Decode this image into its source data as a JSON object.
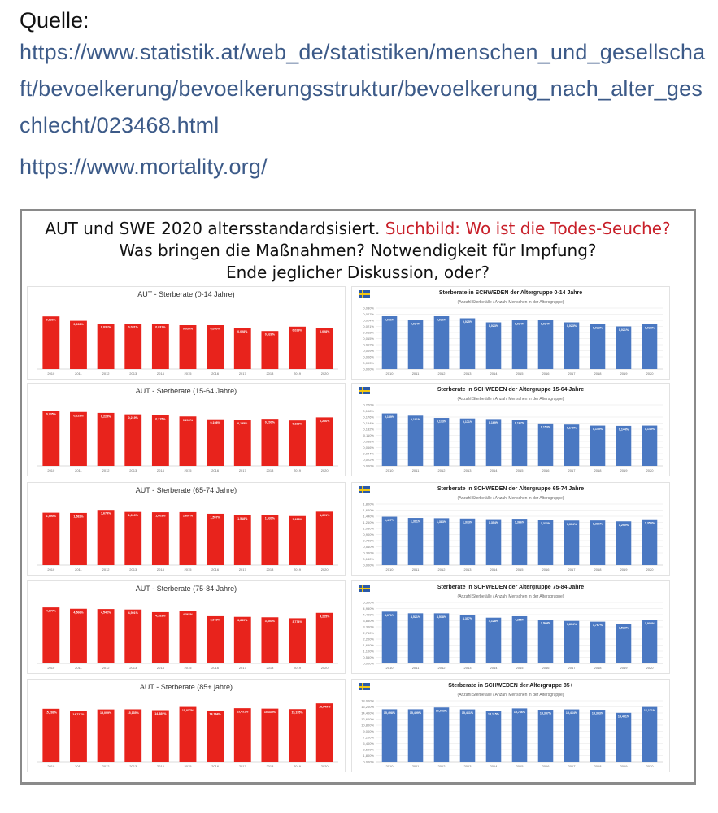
{
  "source": {
    "label": "Quelle:",
    "link1": "https://www.statistik.at/web_de/statistiken/menschen_und_gesellschaft/bevoelkerung/bevoelkerungsstruktur/bevoelkerung_nach_alter_geschlecht/023468.html",
    "link2": "https://www.mortality.org/"
  },
  "heading": {
    "line1_black": "AUT und SWE 2020 altersstandardsisiert.",
    "line1_red": "Suchbild: Wo ist die Todes-Seuche?",
    "line2": "Was bringen die Maßnahmen? Notwendigkeit für Impfung?",
    "line3": "Ende jeglicher Diskussion, oder?"
  },
  "colors": {
    "aut_bar": "#e8231c",
    "swe_bar": "#4a78c2",
    "swe_flag_blue": "#2b5aa8",
    "swe_flag_yellow": "#f3c712",
    "heading_red": "#c8202a"
  },
  "icons": {
    "swe_flag": "sweden-flag-icon"
  },
  "swe_subtitle": "(Anzahl Sterbefälle / Anzahl Menschen in der Altersgruppe)",
  "chart_data": [
    {
      "type": "bar",
      "title": "AUT - Sterberate (0-14 Jahre)",
      "categories": [
        "2010",
        "2011",
        "2012",
        "2013",
        "2014",
        "2015",
        "2016",
        "2017",
        "2018",
        "2019",
        "2020"
      ],
      "values": [
        0.036,
        0.033,
        0.031,
        0.031,
        0.031,
        0.03,
        0.03,
        0.028,
        0.026,
        0.029,
        0.028
      ],
      "labels": [
        "0,036%",
        "0,033%",
        "0,031%",
        "0,031%",
        "0,031%",
        "0,030%",
        "0,030%",
        "0,028%",
        "0,026%",
        "0,029%",
        "0,028%"
      ],
      "ylim": [
        0,
        0.045
      ]
    },
    {
      "type": "bar",
      "title": "Sterberate in SCHWEDEN der Altergruppe 0-14 Jahre",
      "categories": [
        "2010",
        "2011",
        "2012",
        "2013",
        "2014",
        "2015",
        "2016",
        "2017",
        "2018",
        "2019",
        "2020"
      ],
      "values": [
        0.026,
        0.024,
        0.026,
        0.025,
        0.023,
        0.024,
        0.024,
        0.023,
        0.022,
        0.021,
        0.022
      ],
      "labels": [
        "0,026%",
        "0,024%",
        "0,026%",
        "0,025%",
        "0,023%",
        "0,024%",
        "0,024%",
        "0,023%",
        "0,022%",
        "0,021%",
        "0,022%"
      ],
      "ylim": [
        0,
        0.03
      ]
    },
    {
      "type": "bar",
      "title": "AUT - Sterberate (15-64 Jahre)",
      "categories": [
        "2010",
        "2011",
        "2012",
        "2013",
        "2014",
        "2015",
        "2016",
        "2017",
        "2018",
        "2019",
        "2020"
      ],
      "values": [
        0.235,
        0.229,
        0.225,
        0.219,
        0.215,
        0.21,
        0.198,
        0.195,
        0.2,
        0.193,
        0.206
      ],
      "labels": [
        "0,235%",
        "0,229%",
        "0,225%",
        "0,219%",
        "0,215%",
        "0,210%",
        "0,198%",
        "0,195%",
        "0,200%",
        "0,193%",
        "0,206%"
      ],
      "ylim": [
        0,
        0.28
      ]
    },
    {
      "type": "bar",
      "title": "Sterberate in SCHWEDEN der Altergruppe 15-64 Jahre",
      "categories": [
        "2010",
        "2011",
        "2012",
        "2013",
        "2014",
        "2015",
        "2016",
        "2017",
        "2018",
        "2019",
        "2020"
      ],
      "values": [
        0.189,
        0.181,
        0.173,
        0.171,
        0.169,
        0.167,
        0.153,
        0.149,
        0.145,
        0.144,
        0.145
      ],
      "labels": [
        "0,189%",
        "0,181%",
        "0,173%",
        "0,171%",
        "0,169%",
        "0,167%",
        "0,153%",
        "0,149%",
        "0,145%",
        "0,144%",
        "0,145%"
      ],
      "ylim": [
        0,
        0.22
      ]
    },
    {
      "type": "bar",
      "title": "AUT - Sterberate (65-74 Jahre)",
      "categories": [
        "2010",
        "2011",
        "2012",
        "2013",
        "2014",
        "2015",
        "2016",
        "2017",
        "2018",
        "2019",
        "2020"
      ],
      "values": [
        1.59,
        1.582,
        1.674,
        1.613,
        1.603,
        1.607,
        1.557,
        1.518,
        1.53,
        1.488,
        1.621
      ],
      "labels": [
        "1,590%",
        "1,582%",
        "1,674%",
        "1,613%",
        "1,603%",
        "1,607%",
        "1,557%",
        "1,518%",
        "1,530%",
        "1,488%",
        "1,621%"
      ],
      "ylim": [
        0,
        2.0
      ]
    },
    {
      "type": "bar",
      "title": "Sterberate in SCHWEDEN der Altergruppe 65-74 Jahre",
      "categories": [
        "2010",
        "2011",
        "2012",
        "2013",
        "2014",
        "2015",
        "2016",
        "2017",
        "2018",
        "2019",
        "2020"
      ],
      "values": [
        1.427,
        1.391,
        1.383,
        1.373,
        1.354,
        1.366,
        1.333,
        1.314,
        1.316,
        1.29,
        1.35
      ],
      "labels": [
        "1,427%",
        "1,391%",
        "1,383%",
        "1,373%",
        "1,354%",
        "1,366%",
        "1,333%",
        "1,314%",
        "1,316%",
        "1,290%",
        "1,350%"
      ],
      "ylim": [
        0,
        1.8
      ]
    },
    {
      "type": "bar",
      "title": "AUT - Sterberate (75-84 Jahre)",
      "categories": [
        "2010",
        "2011",
        "2012",
        "2013",
        "2014",
        "2015",
        "2016",
        "2017",
        "2018",
        "2019",
        "2020"
      ],
      "values": [
        4.677,
        4.566,
        4.542,
        4.501,
        4.283,
        4.366,
        3.943,
        3.889,
        3.853,
        3.774,
        4.225
      ],
      "labels": [
        "4,677%",
        "4,566%",
        "4,542%",
        "4,501%",
        "4,283%",
        "4,366%",
        "3,943%",
        "3,889%",
        "3,853%",
        "3,774%",
        "4,225%"
      ],
      "ylim": [
        0,
        5.5
      ]
    },
    {
      "type": "bar",
      "title": "Sterberate in SCHWEDEN der Altergruppe 75-84 Jahre",
      "categories": [
        "2010",
        "2011",
        "2012",
        "2013",
        "2014",
        "2015",
        "2016",
        "2017",
        "2018",
        "2019",
        "2020"
      ],
      "values": [
        4.671,
        4.521,
        4.518,
        4.357,
        4.128,
        4.255,
        3.944,
        3.834,
        3.767,
        3.523,
        3.908
      ],
      "labels": [
        "4,671%",
        "4,521%",
        "4,518%",
        "4,357%",
        "4,128%",
        "4,255%",
        "3,944%",
        "3,834%",
        "3,767%",
        "3,523%",
        "3,908%"
      ],
      "ylim": [
        0,
        5.5
      ]
    },
    {
      "type": "bar",
      "title": "AUT - Sterberate (85+ jahre)",
      "categories": [
        "2010",
        "2011",
        "2012",
        "2013",
        "2014",
        "2015",
        "2016",
        "2017",
        "2018",
        "2019",
        "2020"
      ],
      "values": [
        15.288,
        14.717,
        15.099,
        15.135,
        14.889,
        15.817,
        14.784,
        15.451,
        15.335,
        15.195,
        16.849
      ],
      "labels": [
        "15,288%",
        "14,717%",
        "15,099%",
        "15,135%",
        "14,889%",
        "15,817%",
        "14,784%",
        "15,451%",
        "15,335%",
        "15,195%",
        "16,849%"
      ],
      "ylim": [
        0,
        19
      ]
    },
    {
      "type": "bar",
      "title": "Sterberate in SCHWEDEN der Altergruppe 85+",
      "categories": [
        "2010",
        "2011",
        "2012",
        "2013",
        "2014",
        "2015",
        "2016",
        "2017",
        "2018",
        "2019",
        "2020"
      ],
      "values": [
        15.498,
        15.499,
        16.023,
        15.461,
        15.115,
        15.746,
        15.357,
        15.464,
        15.353,
        14.451,
        16.171
      ],
      "labels": [
        "15,498%",
        "15,499%",
        "16,023%",
        "15,461%",
        "15,115%",
        "15,746%",
        "15,357%",
        "15,464%",
        "15,353%",
        "14,451%",
        "16,171%"
      ],
      "ylim": [
        0,
        18
      ]
    }
  ]
}
